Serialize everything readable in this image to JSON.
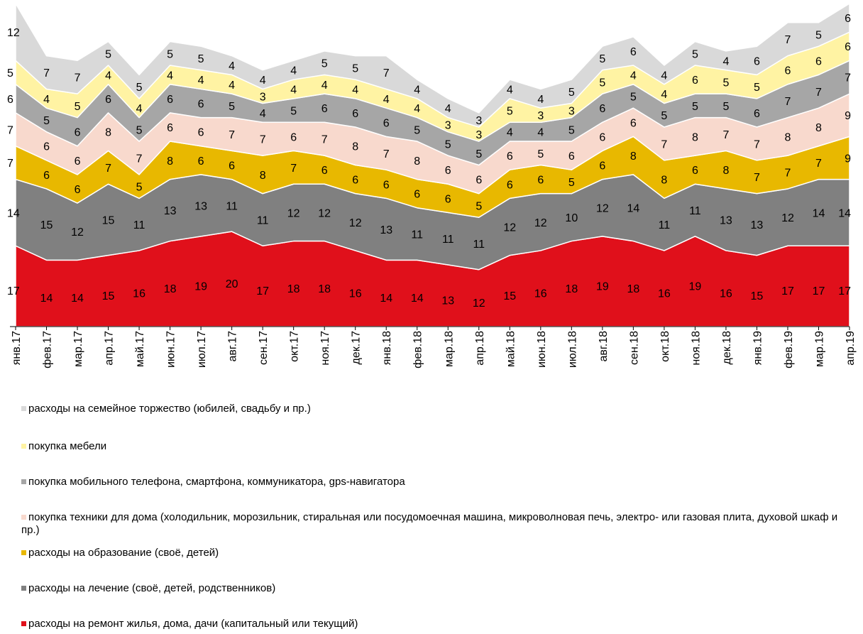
{
  "chart_data": {
    "type": "stacked-area",
    "categories": [
      "янв.17",
      "фев.17",
      "мар.17",
      "апр.17",
      "май.17",
      "июн.17",
      "июл.17",
      "авг.17",
      "сен.17",
      "окт.17",
      "ноя.17",
      "дек.17",
      "янв.18",
      "фев.18",
      "мар.18",
      "апр.18",
      "май.18",
      "июн.18",
      "июл.18",
      "авг.18",
      "сен.18",
      "окт.18",
      "ноя.18",
      "дек.18",
      "янв.19",
      "фев.19",
      "мар.19",
      "апр.19"
    ],
    "series": [
      {
        "name": "расходы на ремонт жилья, дома, дачи (капитальный или текущий)",
        "color": "#e0101b",
        "values": [
          17,
          14,
          14,
          15,
          16,
          18,
          19,
          20,
          17,
          18,
          18,
          16,
          14,
          14,
          13,
          12,
          15,
          16,
          18,
          19,
          18,
          16,
          19,
          16,
          15,
          17,
          17,
          17
        ]
      },
      {
        "name": "расходы на лечение (своё, детей, родственников)",
        "color": "#808080",
        "values": [
          14,
          15,
          12,
          15,
          11,
          13,
          13,
          11,
          11,
          12,
          12,
          12,
          13,
          11,
          11,
          11,
          12,
          12,
          10,
          12,
          14,
          11,
          11,
          13,
          13,
          12,
          14,
          14
        ]
      },
      {
        "name": "расходы на образование (своё, детей)",
        "color": "#e8b800",
        "values": [
          7,
          6,
          6,
          7,
          5,
          8,
          6,
          6,
          8,
          7,
          6,
          6,
          6,
          6,
          6,
          5,
          6,
          6,
          5,
          6,
          8,
          8,
          6,
          8,
          7,
          7,
          7,
          9
        ]
      },
      {
        "name": "покупка техники для дома (холодильник, морозильник, стиральная или посудомоечная машина, микроволновая печь, электро- или газовая плита, духовой шкаф и пр.)",
        "color": "#f8d9cd",
        "values": [
          7,
          6,
          6,
          8,
          7,
          6,
          6,
          7,
          7,
          6,
          7,
          8,
          7,
          8,
          6,
          6,
          6,
          5,
          6,
          6,
          6,
          7,
          8,
          7,
          7,
          8,
          8,
          9
        ]
      },
      {
        "name": "покупка мобильного телефона, смартфона, коммуникатора, gps-навигатора",
        "color": "#a6a6a6",
        "values": [
          6,
          5,
          6,
          6,
          5,
          6,
          6,
          5,
          4,
          5,
          6,
          6,
          6,
          5,
          5,
          5,
          4,
          4,
          5,
          6,
          5,
          5,
          5,
          5,
          6,
          7,
          7,
          7
        ]
      },
      {
        "name": "покупка мебели",
        "color": "#fff3a3",
        "values": [
          5,
          4,
          5,
          4,
          4,
          4,
          4,
          4,
          3,
          4,
          4,
          4,
          4,
          4,
          3,
          3,
          5,
          3,
          3,
          5,
          4,
          4,
          6,
          5,
          5,
          6,
          6,
          6
        ]
      },
      {
        "name": "расходы на семейное торжество (юбилей, свадьбу и пр.)",
        "color": "#d9d9d9",
        "values": [
          12,
          7,
          7,
          5,
          5,
          5,
          5,
          4,
          4,
          4,
          5,
          5,
          7,
          4,
          4,
          3,
          4,
          4,
          5,
          5,
          6,
          4,
          5,
          4,
          6,
          7,
          5,
          6
        ]
      }
    ]
  }
}
